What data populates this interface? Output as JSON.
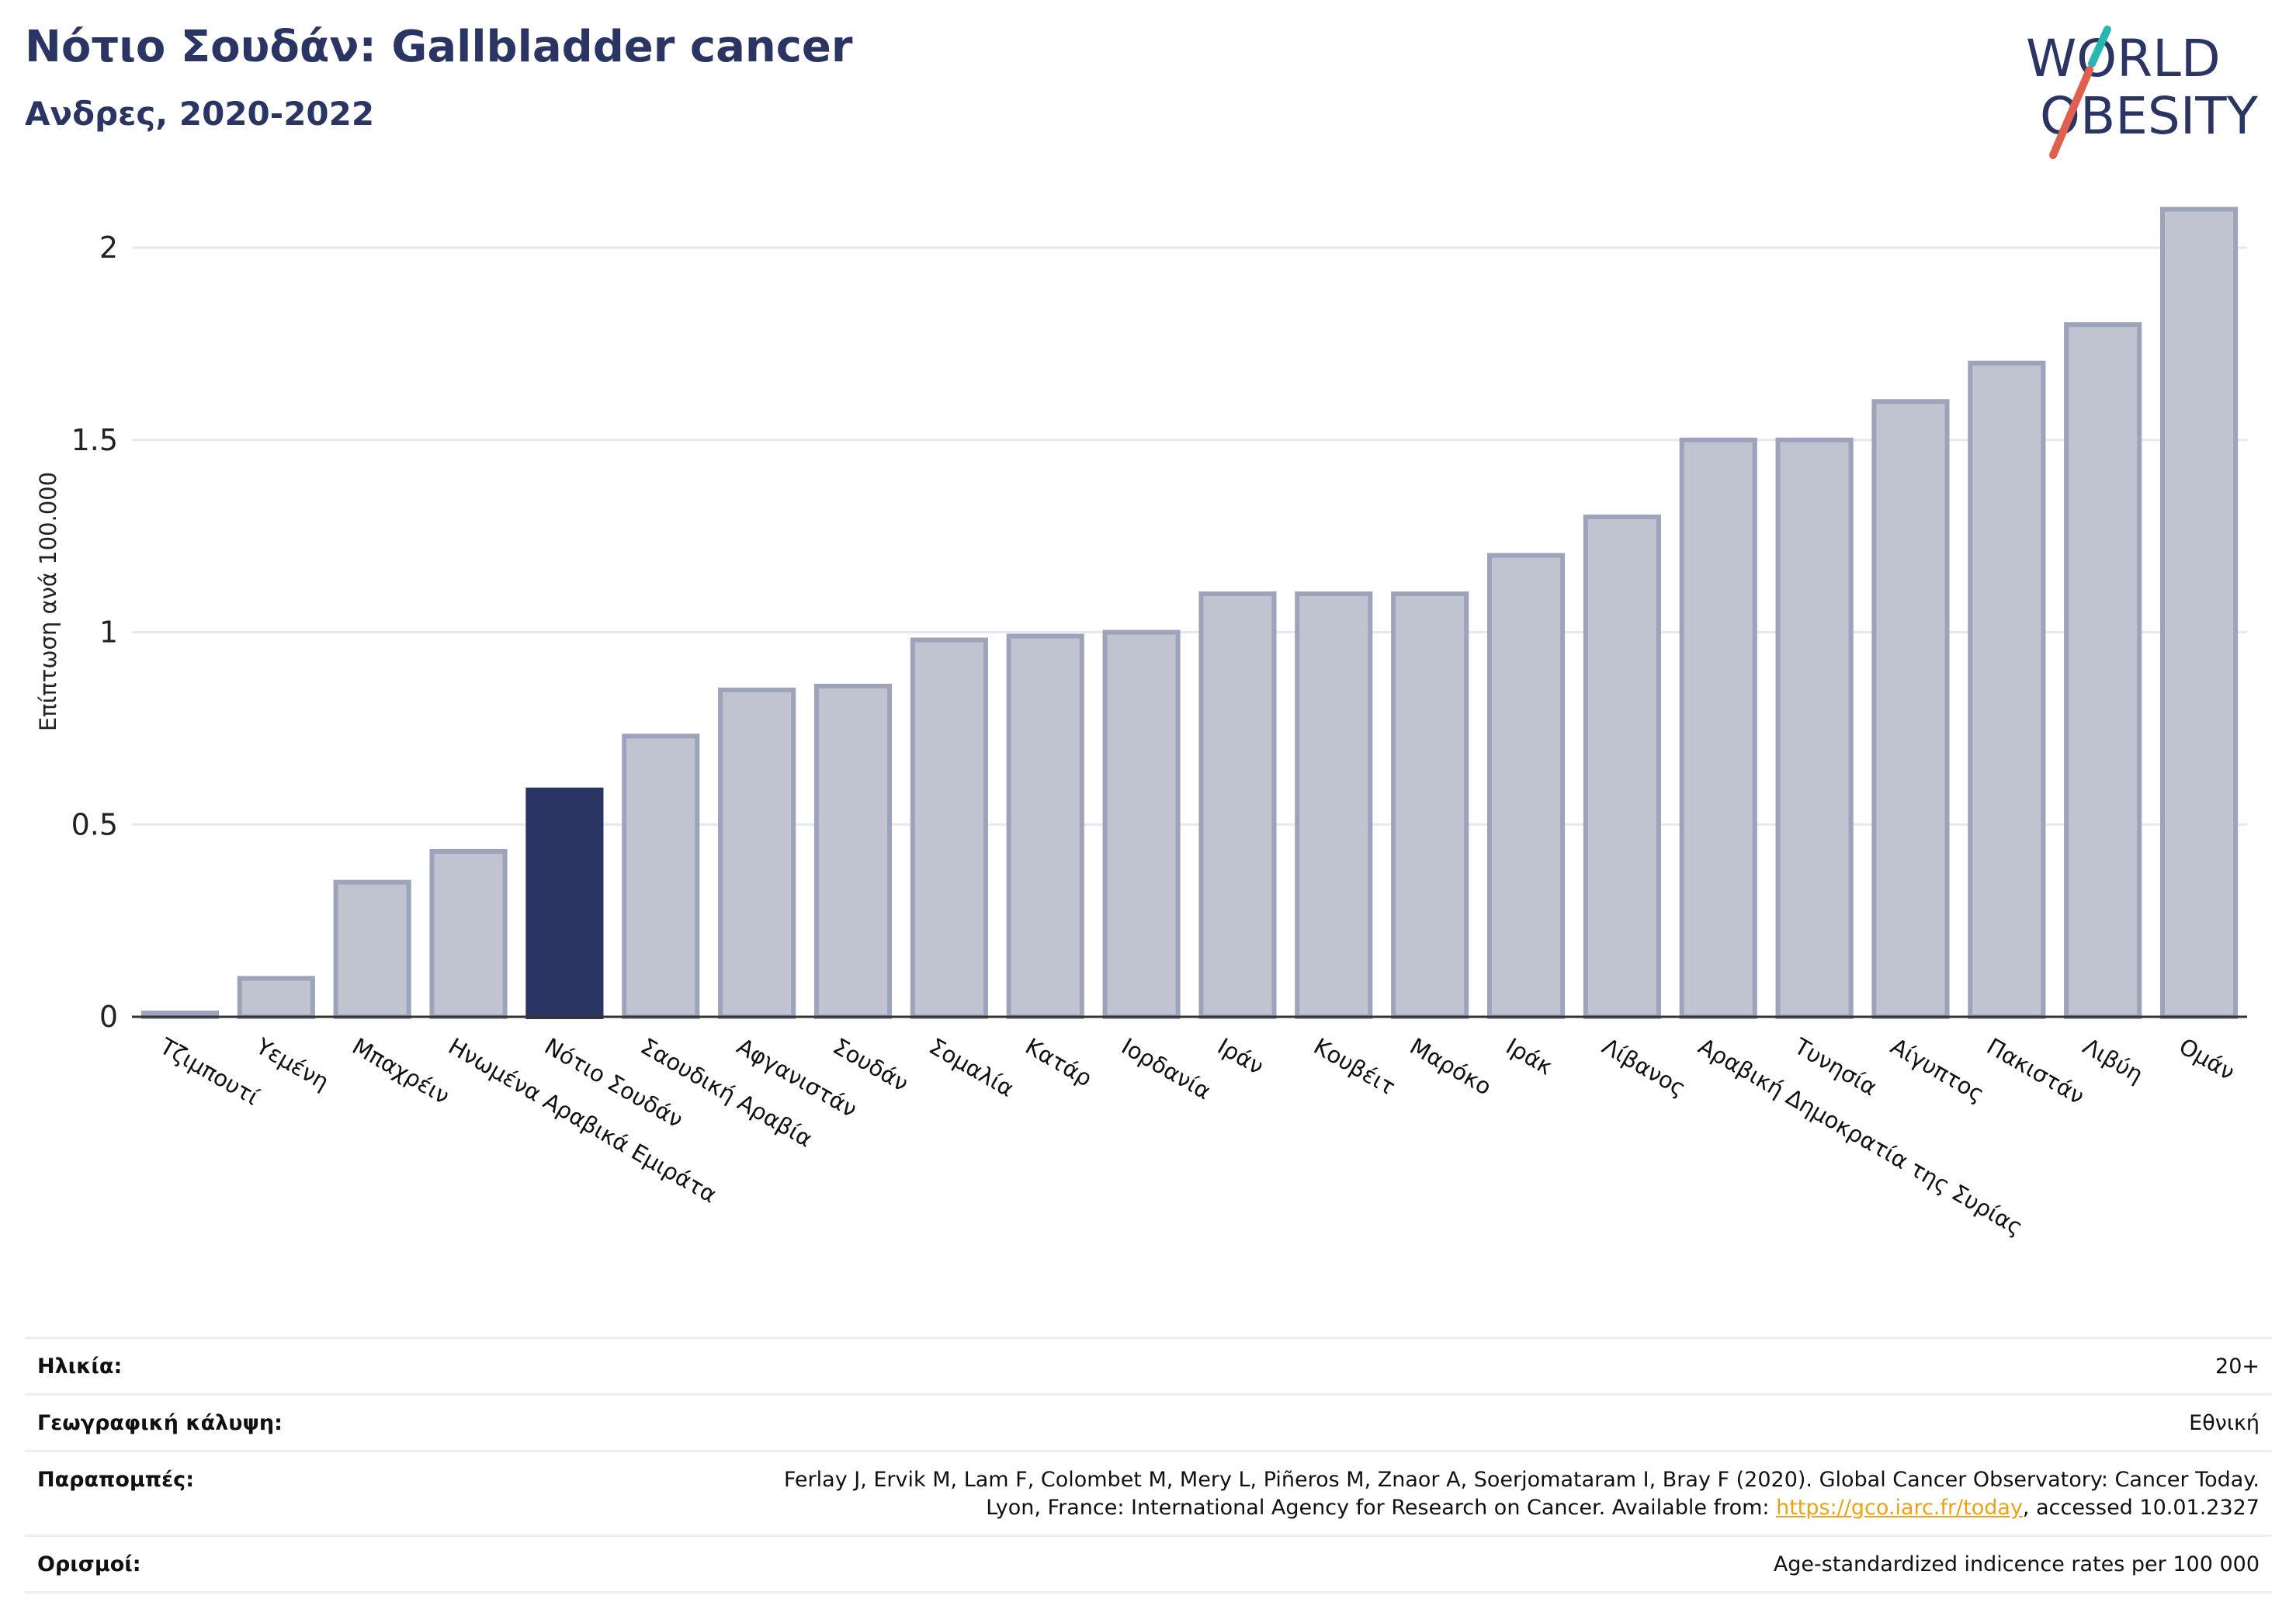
{
  "header": {
    "title": "Νότιο Σουδάν: Gallbladder cancer",
    "subtitle": "Ανδρες, 2020-2022"
  },
  "logo": {
    "line1": "WORLD",
    "line2": "OBESITY",
    "colors": {
      "text": "#2a3563",
      "slash_teal": "#2bb5b0",
      "slash_red": "#e0604f"
    }
  },
  "chart_data": {
    "type": "bar",
    "ylabel": "Επίπτωση ανά 100.000",
    "ylim": [
      0,
      2.2
    ],
    "yticks": [
      0,
      0.5,
      1,
      1.5,
      2
    ],
    "ytick_labels": [
      "0",
      "0.5",
      "1",
      "1.5",
      "2"
    ],
    "grid": true,
    "highlight": "Νότιο Σουδάν",
    "colors": {
      "bar": "#c0c3d0",
      "bar_edge": "#9da3ba",
      "highlight": "#2a3563"
    },
    "categories": [
      "Τζιμπουτί",
      "Υεμένη",
      "Μπαχρέιν",
      "Ηνωμένα Αραβικά Εμιράτα",
      "Νότιο Σουδάν",
      "Σαουδική Αραβία",
      "Αφγανιστάν",
      "Σουδάν",
      "Σομαλία",
      "Κατάρ",
      "Ιορδανία",
      "Ιράν",
      "Κουβέιτ",
      "Μαρόκο",
      "Ιράκ",
      "Λίβανος",
      "Αραβική Δημοκρατία της Συρίας",
      "Τυνησία",
      "Αίγυπτος",
      "Πακιστάν",
      "Λιβύη",
      "Ομάν"
    ],
    "values": [
      0.01,
      0.1,
      0.35,
      0.43,
      0.59,
      0.73,
      0.85,
      0.86,
      0.98,
      0.99,
      1.0,
      1.1,
      1.1,
      1.1,
      1.2,
      1.3,
      1.5,
      1.5,
      1.6,
      1.7,
      1.8,
      2.1
    ]
  },
  "info": {
    "age_label": "Ηλικία:",
    "age_value": "20+",
    "coverage_label": "Γεωγραφική κάλυψη:",
    "coverage_value": "Εθνική",
    "refs_label": "Παραπομπές:",
    "refs_line1": "Ferlay J, Ervik M, Lam F, Colombet M, Mery L, Piñeros M, Znaor A, Soerjomataram I, Bray F (2020). Global Cancer Observatory: Cancer Today.",
    "refs_line2_pre": "Lyon, France: International Agency for Research on Cancer. Available from: ",
    "refs_link": "https://gco.iarc.fr/today",
    "refs_line2_post": ", accessed 10.01.2327",
    "defs_label": "Ορισμοί:",
    "defs_value": "Age-standardized indicence rates per 100 000"
  }
}
